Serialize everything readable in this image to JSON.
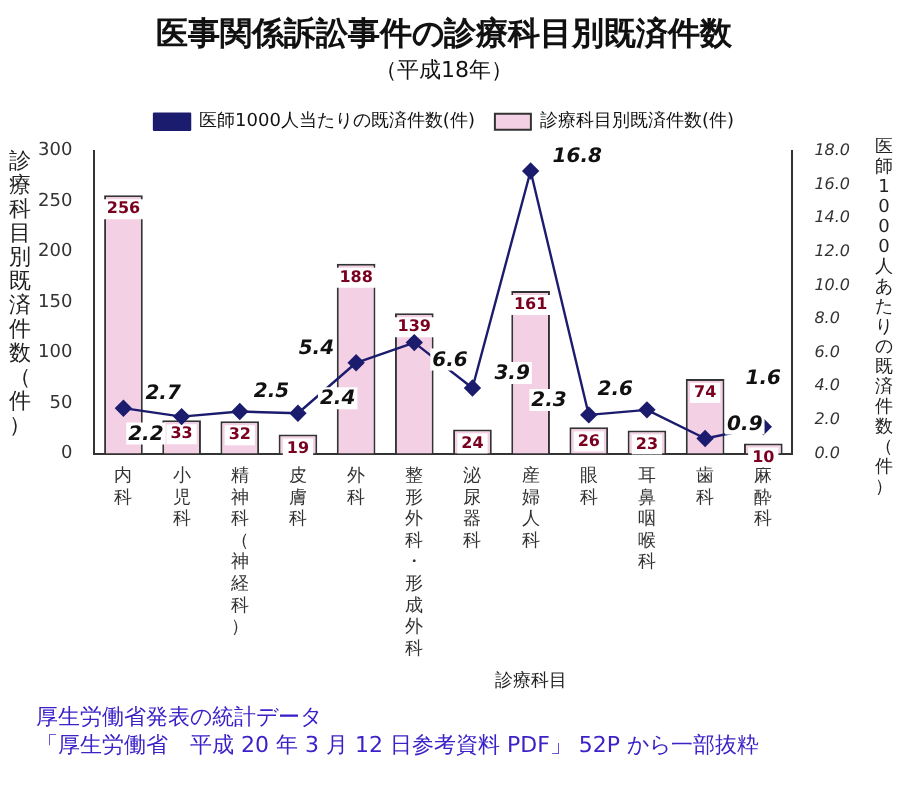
{
  "chart_data": {
    "type": "bar",
    "title": "医事関係訴訟事件の診療科目別既済件数",
    "subtitle": "（平成18年）",
    "xlabel": "診療科目",
    "ylabel": "診療科目別既済件数（件）",
    "y2label": "医師1000人あたりの既済件数（件）",
    "categories": [
      "内科",
      "小児科",
      "精神科（神経科）",
      "皮膚科",
      "外科",
      "整形外科・形成外科",
      "泌尿器科",
      "産婦人科",
      "眼科",
      "耳鼻咽喉科",
      "歯科",
      "麻酔科"
    ],
    "series": [
      {
        "name": "診療科目別既済件数(件)",
        "type": "bar",
        "color": "#f4d0e4",
        "values": [
          256,
          33,
          32,
          19,
          188,
          139,
          24,
          161,
          26,
          23,
          74,
          10
        ]
      },
      {
        "name": "医師1000人当たりの既済件数(件)",
        "type": "line",
        "axis": "y2",
        "color": "#1c1c6e",
        "values": [
          2.7,
          2.2,
          2.5,
          2.4,
          5.4,
          6.6,
          3.9,
          16.8,
          2.3,
          2.6,
          0.9,
          1.6
        ]
      }
    ],
    "ylim": [
      0,
      300
    ],
    "yticks": [
      0,
      50,
      100,
      150,
      200,
      250,
      300
    ],
    "y2lim": [
      0,
      18
    ],
    "y2ticks": [
      {
        "value": 0,
        "label": "0.0"
      },
      {
        "value": 2,
        "label": "2.0"
      },
      {
        "value": 4,
        "label": "4.0"
      },
      {
        "value": 6,
        "label": "6.0"
      },
      {
        "value": 8,
        "label": "8.0"
      },
      {
        "value": 10,
        "label": "10.0"
      },
      {
        "value": 12,
        "label": "12.0"
      },
      {
        "value": 14,
        "label": "14.0"
      },
      {
        "value": 16,
        "label": "16.0"
      },
      {
        "value": 18,
        "label": "18.0"
      }
    ],
    "data_labels": true,
    "legend": "top",
    "grid": false,
    "marker": "diamond",
    "annotations": [
      "厚生労働省発表の統計データ",
      "「厚生労働省　平成 20 年 3 月 12 日参考資料 PDF」 52P から一部抜粋"
    ]
  }
}
